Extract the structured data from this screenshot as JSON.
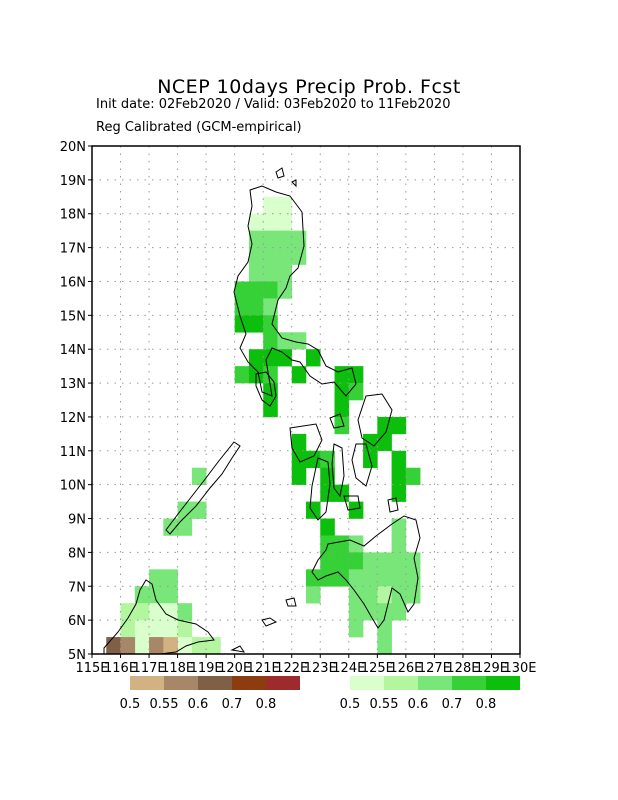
{
  "title": "NCEP 10days Precip Prob. Fcst",
  "subtitle_line1": "Init date: 02Feb2020 / Valid: 03Feb2020 to 11Feb2020",
  "subtitle_line2": "Reg Calibrated (GCM-empirical)",
  "map": {
    "lon_range": [
      115,
      130
    ],
    "lat_range": [
      5,
      20
    ],
    "cell_deg": 0.5,
    "x_ticks": [
      "115E",
      "116E",
      "117E",
      "118E",
      "119E",
      "120E",
      "121E",
      "122E",
      "123E",
      "124E",
      "125E",
      "126E",
      "127E",
      "128E",
      "129E",
      "130E"
    ],
    "y_ticks": [
      "5N",
      "6N",
      "7N",
      "8N",
      "9N",
      "10N",
      "11N",
      "12N",
      "13N",
      "14N",
      "15N",
      "16N",
      "17N",
      "18N",
      "19N",
      "20N"
    ],
    "grid": "dotted",
    "coastline_color": "#000000"
  },
  "legends": {
    "dry": {
      "labels": [
        "0.5",
        "0.55",
        "0.6",
        "0.7",
        "0.8"
      ],
      "colors": [
        "#d2b283",
        "#a88668",
        "#7f5f45",
        "#8c3c0e",
        "#9e2b2b"
      ]
    },
    "wet": {
      "labels": [
        "0.5",
        "0.55",
        "0.6",
        "0.7",
        "0.8"
      ],
      "colors": [
        "#d8ffcc",
        "#b4f5a0",
        "#78e678",
        "#36d136",
        "#0cbf0c"
      ]
    }
  },
  "chart_data": {
    "type": "heatmap",
    "title": "NCEP 10days Precip Prob. Fcst",
    "x_units": "longitude (deg E)",
    "y_units": "latitude (deg N)",
    "note": "cells are [lon_west, lat_south, category]; wet categories 1-5 = 0.5,0.55,0.6,0.7,0.8 prob; dry categories -1..-5 = 0.5..0.8",
    "cells": [
      [
        120.5,
        17.5,
        1
      ],
      [
        121.0,
        17.5,
        1
      ],
      [
        121.5,
        17.5,
        1
      ],
      [
        121.0,
        18.0,
        1
      ],
      [
        121.5,
        18.0,
        1
      ],
      [
        120.5,
        17.0,
        3
      ],
      [
        121.0,
        17.0,
        3
      ],
      [
        121.5,
        17.0,
        3
      ],
      [
        122.0,
        17.0,
        3
      ],
      [
        120.5,
        16.5,
        3
      ],
      [
        121.0,
        16.5,
        3
      ],
      [
        121.5,
        16.5,
        3
      ],
      [
        122.0,
        16.5,
        3
      ],
      [
        120.5,
        16.0,
        3
      ],
      [
        121.0,
        16.0,
        3
      ],
      [
        121.5,
        16.0,
        3
      ],
      [
        120.0,
        15.5,
        4
      ],
      [
        120.5,
        15.5,
        4
      ],
      [
        121.0,
        15.5,
        4
      ],
      [
        121.5,
        15.5,
        3
      ],
      [
        120.0,
        15.0,
        4
      ],
      [
        120.5,
        15.0,
        4
      ],
      [
        121.0,
        15.0,
        3
      ],
      [
        120.0,
        14.5,
        5
      ],
      [
        120.5,
        14.5,
        5
      ],
      [
        121.0,
        14.5,
        4
      ],
      [
        121.0,
        14.0,
        4
      ],
      [
        121.5,
        14.0,
        3
      ],
      [
        122.0,
        14.0,
        3
      ],
      [
        120.5,
        13.5,
        5
      ],
      [
        121.0,
        13.5,
        5
      ],
      [
        121.5,
        13.5,
        5
      ],
      [
        122.5,
        13.5,
        5
      ],
      [
        120.0,
        13.0,
        4
      ],
      [
        120.5,
        13.0,
        5
      ],
      [
        121.0,
        13.0,
        4
      ],
      [
        122.0,
        13.0,
        5
      ],
      [
        123.5,
        13.0,
        5
      ],
      [
        124.0,
        13.0,
        5
      ],
      [
        121.0,
        12.5,
        5
      ],
      [
        123.5,
        12.5,
        5
      ],
      [
        124.0,
        12.5,
        4
      ],
      [
        123.5,
        12.0,
        5
      ],
      [
        121.0,
        12.0,
        5
      ],
      [
        123.5,
        11.5,
        4
      ],
      [
        125.0,
        11.5,
        5
      ],
      [
        125.5,
        11.5,
        5
      ],
      [
        122.0,
        11.0,
        5
      ],
      [
        124.5,
        11.0,
        5
      ],
      [
        125.0,
        11.0,
        5
      ],
      [
        122.0,
        10.5,
        5
      ],
      [
        122.5,
        10.5,
        5
      ],
      [
        123.0,
        10.5,
        4
      ],
      [
        124.5,
        10.5,
        5
      ],
      [
        125.5,
        10.5,
        5
      ],
      [
        122.0,
        10.0,
        5
      ],
      [
        123.0,
        10.0,
        5
      ],
      [
        125.5,
        10.0,
        5
      ],
      [
        126.0,
        10.0,
        4
      ],
      [
        123.0,
        9.5,
        5
      ],
      [
        123.5,
        9.5,
        5
      ],
      [
        125.5,
        9.5,
        5
      ],
      [
        122.5,
        9.0,
        5
      ],
      [
        124.0,
        9.0,
        5
      ],
      [
        123.0,
        8.5,
        5
      ],
      [
        125.5,
        8.5,
        3
      ],
      [
        123.0,
        8.0,
        4
      ],
      [
        123.5,
        8.0,
        4
      ],
      [
        124.0,
        8.0,
        3
      ],
      [
        125.5,
        8.0,
        3
      ],
      [
        123.0,
        7.5,
        4
      ],
      [
        123.5,
        7.5,
        4
      ],
      [
        124.0,
        7.5,
        4
      ],
      [
        124.5,
        7.5,
        3
      ],
      [
        125.0,
        7.5,
        3
      ],
      [
        125.5,
        7.5,
        3
      ],
      [
        126.0,
        7.5,
        3
      ],
      [
        122.5,
        7.0,
        4
      ],
      [
        123.0,
        7.0,
        4
      ],
      [
        123.5,
        7.0,
        4
      ],
      [
        124.0,
        7.0,
        3
      ],
      [
        124.5,
        7.0,
        3
      ],
      [
        125.0,
        7.0,
        3
      ],
      [
        125.5,
        7.0,
        3
      ],
      [
        126.0,
        7.0,
        3
      ],
      [
        122.5,
        6.5,
        3
      ],
      [
        124.0,
        6.5,
        3
      ],
      [
        124.5,
        6.5,
        3
      ],
      [
        125.0,
        6.5,
        2
      ],
      [
        125.5,
        6.5,
        3
      ],
      [
        126.0,
        6.5,
        3
      ],
      [
        124.0,
        6.0,
        3
      ],
      [
        124.5,
        6.0,
        3
      ],
      [
        125.0,
        6.0,
        3
      ],
      [
        125.5,
        6.0,
        3
      ],
      [
        124.0,
        5.5,
        3
      ],
      [
        125.0,
        5.5,
        3
      ],
      [
        125.0,
        5.0,
        3
      ],
      [
        117.0,
        7.0,
        3
      ],
      [
        117.5,
        7.0,
        3
      ],
      [
        116.5,
        6.5,
        3
      ],
      [
        117.0,
        6.5,
        3
      ],
      [
        117.5,
        6.5,
        3
      ],
      [
        116.0,
        6.0,
        2
      ],
      [
        116.5,
        6.0,
        2
      ],
      [
        117.0,
        6.0,
        1
      ],
      [
        117.5,
        6.0,
        1
      ],
      [
        116.0,
        5.5,
        2
      ],
      [
        116.5,
        5.5,
        1
      ],
      [
        117.0,
        5.5,
        1
      ],
      [
        117.5,
        5.5,
        1
      ],
      [
        118.0,
        5.5,
        2
      ],
      [
        116.5,
        5.0,
        1
      ],
      [
        117.0,
        5.0,
        2
      ],
      [
        118.0,
        5.0,
        1
      ],
      [
        118.5,
        5.0,
        2
      ],
      [
        119.0,
        5.0,
        2
      ],
      [
        115.5,
        5.0,
        -3
      ],
      [
        116.0,
        5.0,
        -2
      ],
      [
        117.0,
        5.0,
        -2
      ],
      [
        117.5,
        5.0,
        -1
      ],
      [
        118.0,
        6.0,
        3
      ],
      [
        117.5,
        8.5,
        3
      ],
      [
        118.0,
        8.5,
        3
      ],
      [
        118.0,
        9.0,
        3
      ],
      [
        118.5,
        9.0,
        3
      ],
      [
        118.5,
        10.0,
        3
      ]
    ]
  }
}
